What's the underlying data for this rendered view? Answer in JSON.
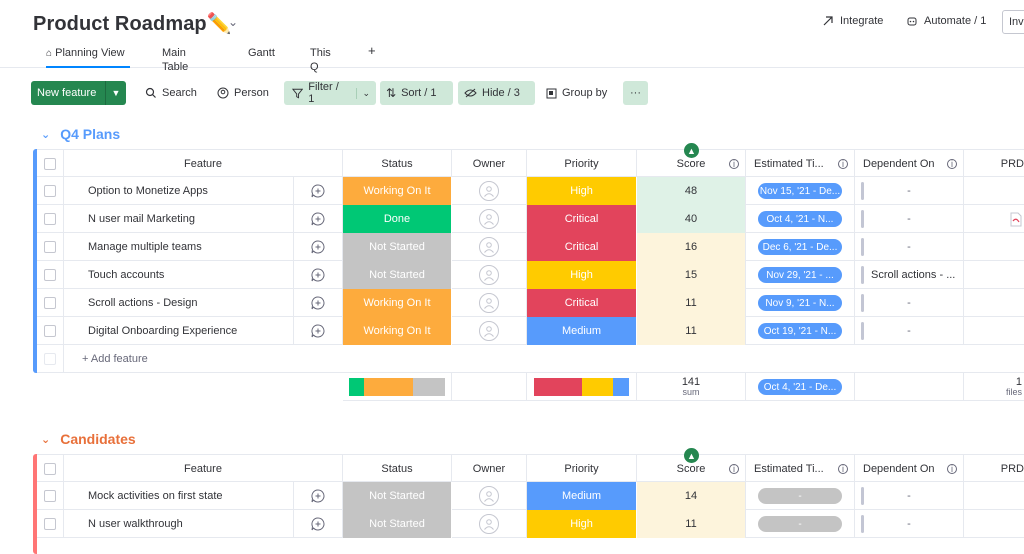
{
  "header": {
    "title": "Product Roadmap✏️",
    "integrate": "Integrate",
    "automate": "Automate / 1",
    "invite": "Inv"
  },
  "tabs": [
    "Planning View",
    "Main Table",
    "Gantt",
    "This Q",
    "+"
  ],
  "toolbar": {
    "new_feature": "New feature",
    "search": "Search",
    "person": "Person",
    "filter": "Filter / 1",
    "sort": "Sort / 1",
    "hide": "Hide / 3",
    "group_by": "Group by",
    "more": "···"
  },
  "columns": {
    "feature": "Feature",
    "status": "Status",
    "owner": "Owner",
    "priority": "Priority",
    "score": "Score",
    "estimated": "Estimated Ti...",
    "dependent": "Dependent On",
    "prd": "PRD"
  },
  "colors": {
    "working": "#fdab3d",
    "done": "#00c875",
    "not_started": "#c4c4c4",
    "high": "#ffcb00",
    "critical": "#e2445c",
    "medium": "#579bfc",
    "q4_group": "#579bfc",
    "candidates_group": "#ff7575"
  },
  "groups": [
    {
      "name": "Q4 Plans",
      "add_label": "+ Add feature",
      "rows": [
        {
          "feature": "Option to Monetize Apps",
          "status": "Working On It",
          "priority": "High",
          "score": "48",
          "date": "Nov 15, '21 - De...",
          "dep": "-"
        },
        {
          "feature": "N user mail Marketing",
          "status": "Done",
          "priority": "Critical",
          "score": "40",
          "date": "Oct 4, '21 - N...",
          "dep": "-"
        },
        {
          "feature": "Manage multiple teams",
          "status": "Not Started",
          "priority": "Critical",
          "score": "16",
          "date": "Dec 6, '21 - De...",
          "dep": "-"
        },
        {
          "feature": "Touch accounts",
          "status": "Not Started",
          "priority": "High",
          "score": "15",
          "date": "Nov 29, '21 - ...",
          "dep": "Scroll actions - ..."
        },
        {
          "feature": "Scroll actions - Design",
          "status": "Working On It",
          "priority": "Critical",
          "score": "11",
          "date": "Nov 9, '21 - N...",
          "dep": "-"
        },
        {
          "feature": "Digital Onboarding Experience",
          "status": "Working On It",
          "priority": "Medium",
          "score": "11",
          "date": "Oct 19, '21 - N...",
          "dep": "-"
        }
      ],
      "summary": {
        "score_sum": "141",
        "score_label": "sum",
        "date_range": "Oct 4, '21 - De...",
        "prd_count": "1",
        "prd_label": "files"
      }
    },
    {
      "name": "Candidates",
      "rows": [
        {
          "feature": "Mock activities on first state",
          "status": "Not Started",
          "priority": "Medium",
          "score": "14",
          "date": "-",
          "dep": "-"
        },
        {
          "feature": "N user walkthrough",
          "status": "Not Started",
          "priority": "High",
          "score": "11",
          "date": "-",
          "dep": "-"
        }
      ]
    }
  ]
}
